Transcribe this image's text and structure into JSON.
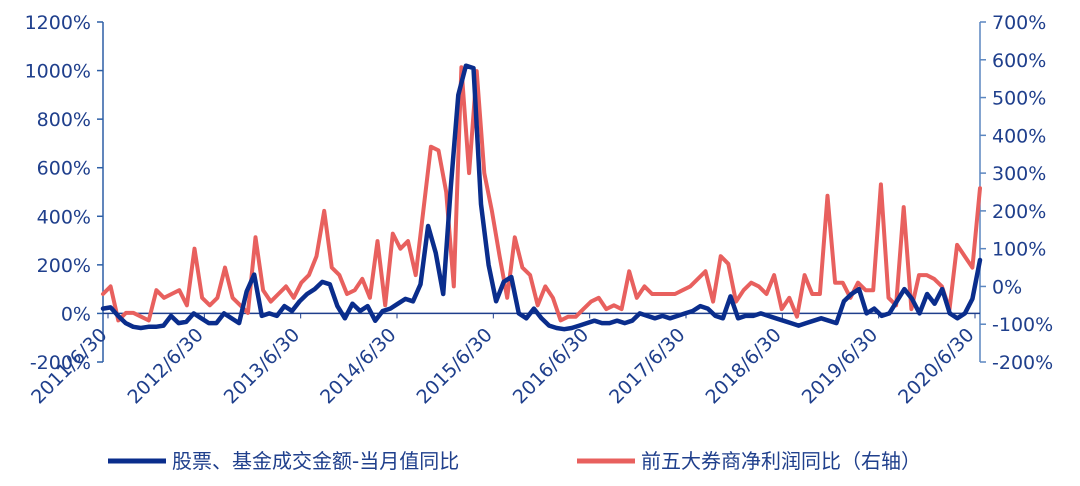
{
  "chart_data": {
    "type": "line",
    "x_labels": [
      "2011/6/30",
      "2012/6/30",
      "2013/6/30",
      "2014/6/30",
      "2015/6/30",
      "2016/6/30",
      "2017/6/30",
      "2018/6/30",
      "2019/6/30",
      "2020/6/30"
    ],
    "y_left": {
      "ticks": [
        "-200%",
        "0%",
        "200%",
        "400%",
        "600%",
        "800%",
        "1000%",
        "1200%"
      ],
      "range": [
        -200,
        1200
      ]
    },
    "y_right": {
      "ticks": [
        "-200%",
        "-100%",
        "0%",
        "100%",
        "200%",
        "300%",
        "400%",
        "500%",
        "600%",
        "700%"
      ],
      "range": [
        -200,
        700
      ]
    },
    "series": [
      {
        "name": "股票、基金成交金额-当月值同比",
        "axis": "left",
        "color": "#0a2d8c",
        "values": [
          20,
          25,
          -10,
          -40,
          -55,
          -60,
          -55,
          -55,
          -50,
          -10,
          -40,
          -35,
          0,
          -20,
          -40,
          -40,
          0,
          -20,
          -40,
          90,
          160,
          -10,
          0,
          -10,
          30,
          10,
          50,
          80,
          100,
          130,
          120,
          30,
          -20,
          40,
          10,
          30,
          -30,
          10,
          20,
          40,
          60,
          50,
          120,
          360,
          250,
          80,
          520,
          900,
          1020,
          1010,
          450,
          200,
          50,
          130,
          150,
          0,
          -20,
          20,
          -20,
          -50,
          -60,
          -65,
          -60,
          -50,
          -40,
          -30,
          -40,
          -40,
          -30,
          -40,
          -30,
          0,
          -10,
          -20,
          -10,
          -20,
          -10,
          0,
          10,
          30,
          20,
          -10,
          -20,
          70,
          -20,
          -10,
          -10,
          0,
          -10,
          -20,
          -30,
          -40,
          -50,
          -40,
          -30,
          -20,
          -30,
          -40,
          50,
          80,
          100,
          0,
          20,
          -10,
          0,
          50,
          100,
          60,
          0,
          80,
          40,
          100,
          0,
          -20,
          0,
          60,
          220
        ]
      },
      {
        "name": "前五大券商净利润同比（右轴）",
        "axis": "right",
        "color": "#e8605e",
        "values": [
          -20,
          0,
          -90,
          -70,
          -70,
          -80,
          -90,
          -10,
          -30,
          -20,
          -10,
          -50,
          100,
          -30,
          -50,
          -30,
          50,
          -30,
          -50,
          -70,
          130,
          -10,
          -40,
          -20,
          0,
          -30,
          10,
          30,
          80,
          200,
          50,
          30,
          -20,
          -10,
          20,
          -30,
          120,
          -50,
          140,
          100,
          120,
          30,
          200,
          370,
          360,
          250,
          0,
          580,
          300,
          570,
          300,
          200,
          80,
          -30,
          130,
          50,
          30,
          -50,
          0,
          -30,
          -90,
          -80,
          -80,
          -60,
          -40,
          -30,
          -60,
          -50,
          -60,
          40,
          -30,
          0,
          -20,
          -20,
          -20,
          -20,
          -10,
          0,
          20,
          40,
          -40,
          80,
          60,
          -40,
          -10,
          10,
          0,
          -20,
          30,
          -60,
          -30,
          -80,
          30,
          -20,
          -20,
          240,
          10,
          10,
          -30,
          10,
          -10,
          -10,
          270,
          -30,
          -50,
          210,
          -60,
          30,
          30,
          20,
          0,
          -60,
          110,
          80,
          50,
          260
        ]
      }
    ],
    "legend": {
      "placement": "bottom"
    },
    "grid": false
  }
}
